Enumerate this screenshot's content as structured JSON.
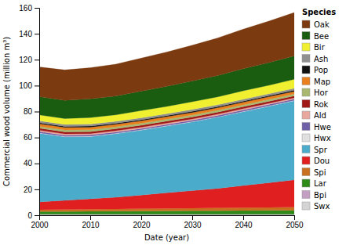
{
  "chart_data": {
    "type": "area",
    "stacked": true,
    "title": "Species",
    "x_label": "Date (year)",
    "y_label": "Commercial wood volume (million m³)",
    "x": [
      2000,
      2005,
      2010,
      2015,
      2020,
      2025,
      2030,
      2035,
      2040,
      2045,
      2050
    ],
    "series": [
      {
        "name": "Swx",
        "color": "#d4d4d4",
        "values": [
          0.5,
          0.5,
          0.5,
          0.5,
          0.5,
          0.5,
          0.5,
          0.5,
          0.5,
          0.5,
          0.5
        ]
      },
      {
        "name": "Bpi",
        "color": "#c49fc4",
        "values": [
          0.3,
          0.3,
          0.3,
          0.3,
          0.3,
          0.3,
          0.3,
          0.3,
          0.3,
          0.3,
          0.3
        ]
      },
      {
        "name": "Lar",
        "color": "#2e8b1a",
        "values": [
          2.0,
          2.1,
          2.2,
          2.3,
          2.4,
          2.5,
          2.6,
          2.7,
          2.8,
          2.9,
          3.0
        ]
      },
      {
        "name": "Spi",
        "color": "#c87020",
        "values": [
          1.5,
          1.6,
          1.7,
          1.8,
          1.9,
          2.0,
          2.1,
          2.2,
          2.3,
          2.4,
          2.5
        ]
      },
      {
        "name": "Dou",
        "color": "#e02020",
        "values": [
          6.0,
          7.0,
          8.0,
          9.0,
          10.5,
          12.0,
          13.5,
          15.0,
          17.0,
          19.0,
          21.0
        ]
      },
      {
        "name": "Spr",
        "color": "#4aabca",
        "values": [
          53.0,
          49.0,
          48.0,
          49.0,
          50.0,
          51.5,
          53.0,
          55.0,
          57.0,
          59.0,
          61.0
        ]
      },
      {
        "name": "Hwx",
        "color": "#e0e0e0",
        "values": [
          0.3,
          0.3,
          0.3,
          0.3,
          0.3,
          0.3,
          0.3,
          0.3,
          0.3,
          0.3,
          0.3
        ]
      },
      {
        "name": "Hwe",
        "color": "#7060a8",
        "values": [
          1.0,
          1.0,
          1.0,
          1.0,
          1.0,
          1.0,
          1.0,
          1.0,
          1.0,
          1.0,
          1.0
        ]
      },
      {
        "name": "Ald",
        "color": "#e8a8a0",
        "values": [
          1.0,
          1.0,
          1.0,
          1.0,
          1.0,
          1.0,
          1.0,
          1.0,
          1.0,
          1.0,
          1.0
        ]
      },
      {
        "name": "Rok",
        "color": "#a01818",
        "values": [
          1.5,
          1.5,
          1.5,
          1.5,
          1.5,
          1.5,
          1.5,
          1.5,
          1.5,
          1.5,
          1.5
        ]
      },
      {
        "name": "Hor",
        "color": "#a8b870",
        "values": [
          1.5,
          1.5,
          1.5,
          1.5,
          1.5,
          1.5,
          1.5,
          1.5,
          1.5,
          1.5,
          1.5
        ]
      },
      {
        "name": "Map",
        "color": "#e88020",
        "values": [
          2.0,
          2.0,
          2.0,
          2.0,
          2.0,
          2.0,
          2.0,
          2.0,
          2.0,
          2.0,
          2.0
        ]
      },
      {
        "name": "Pop",
        "color": "#101010",
        "values": [
          0.8,
          0.8,
          0.8,
          0.8,
          0.8,
          0.8,
          0.8,
          0.8,
          0.8,
          0.8,
          0.8
        ]
      },
      {
        "name": "Ash",
        "color": "#909090",
        "values": [
          1.5,
          1.5,
          1.5,
          1.5,
          1.5,
          1.5,
          1.5,
          1.5,
          1.5,
          1.5,
          1.5
        ]
      },
      {
        "name": "Bir",
        "color": "#f0f030",
        "values": [
          4.5,
          4.5,
          5.0,
          5.0,
          5.5,
          5.5,
          6.0,
          6.0,
          6.5,
          6.5,
          7.0
        ]
      },
      {
        "name": "Bee",
        "color": "#1a5c10",
        "values": [
          14.0,
          14.0,
          14.5,
          14.5,
          15.0,
          15.5,
          16.0,
          16.5,
          17.0,
          17.5,
          18.0
        ]
      },
      {
        "name": "Oak",
        "color": "#7c3a10",
        "values": [
          23.0,
          23.5,
          24.0,
          24.5,
          25.5,
          26.5,
          27.5,
          29.0,
          30.5,
          32.0,
          33.5
        ]
      }
    ],
    "xlim": [
      2000,
      2050
    ],
    "ylim": [
      0,
      160
    ],
    "xticks": [
      2000,
      2010,
      2020,
      2030,
      2040,
      2050
    ],
    "yticks": [
      0,
      20,
      40,
      60,
      80,
      100,
      120,
      140,
      160
    ],
    "grid": false,
    "legend": "right"
  }
}
